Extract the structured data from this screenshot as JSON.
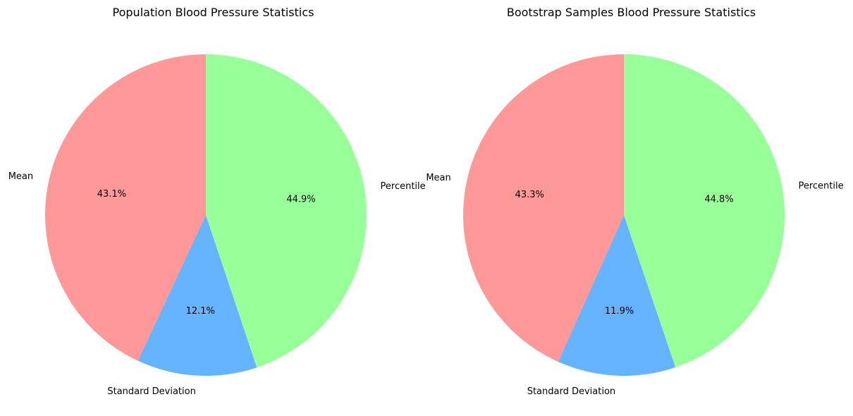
{
  "chart_data": [
    {
      "type": "pie",
      "title": "Population Blood Pressure Statistics",
      "slices": [
        {
          "label": "Mean",
          "value": 43.1,
          "pct_label": "43.1%",
          "color": "#ff9999"
        },
        {
          "label": "Standard Deviation",
          "value": 12.1,
          "pct_label": "12.1%",
          "color": "#66b3ff"
        },
        {
          "label": "Percentile",
          "value": 44.9,
          "pct_label": "44.9%",
          "color": "#99ff99"
        }
      ]
    },
    {
      "type": "pie",
      "title": "Bootstrap Samples Blood Pressure Statistics",
      "slices": [
        {
          "label": "Mean",
          "value": 43.3,
          "pct_label": "43.3%",
          "color": "#ff9999"
        },
        {
          "label": "Standard Deviation",
          "value": 11.9,
          "pct_label": "11.9%",
          "color": "#66b3ff"
        },
        {
          "label": "Percentile",
          "value": 44.8,
          "pct_label": "44.8%",
          "color": "#99ff99"
        }
      ]
    }
  ]
}
